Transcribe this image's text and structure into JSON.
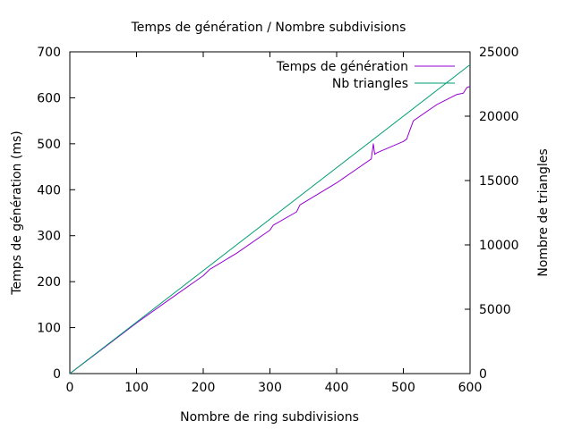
{
  "chart_data": {
    "type": "line",
    "title": "Temps de génération / Nombre subdivisions",
    "xlabel": "Nombre de ring subdivisions",
    "ylabel": "Temps de génération (ms)",
    "y2label": "Nombre de triangles",
    "xlim": [
      0,
      600
    ],
    "ylim": [
      0,
      700
    ],
    "y2lim": [
      0,
      25000
    ],
    "xticks": [
      0,
      100,
      200,
      300,
      400,
      500,
      600
    ],
    "yticks": [
      0,
      100,
      200,
      300,
      400,
      500,
      600,
      700
    ],
    "y2ticks": [
      0,
      5000,
      10000,
      15000,
      20000,
      25000
    ],
    "grid": false,
    "legend_position": "top-right",
    "series": [
      {
        "name": "Temps de génération",
        "axis": "y",
        "color": "#9400d3",
        "x": [
          0,
          50,
          100,
          150,
          200,
          205,
          210,
          250,
          300,
          305,
          310,
          340,
          345,
          400,
          430,
          452,
          455,
          457,
          460,
          500,
          505,
          510,
          515,
          550,
          580,
          590,
          595,
          600
        ],
        "y": [
          0,
          55,
          110,
          162,
          213,
          220,
          227,
          262,
          312,
          323,
          327,
          352,
          367,
          415,
          445,
          467,
          500,
          477,
          480,
          505,
          510,
          530,
          550,
          585,
          607,
          610,
          622,
          625
        ]
      },
      {
        "name": "Nb triangles",
        "axis": "y2",
        "color": "#009e73",
        "x": [
          0,
          600
        ],
        "y": [
          0,
          24000
        ]
      }
    ]
  }
}
